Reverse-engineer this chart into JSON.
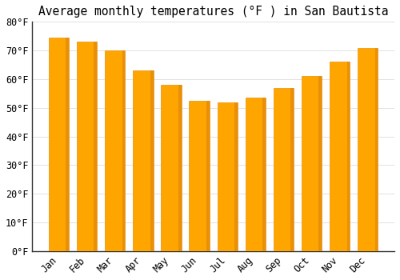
{
  "title": "Average monthly temperatures (°F ) in San Bautista",
  "months": [
    "Jan",
    "Feb",
    "Mar",
    "Apr",
    "May",
    "Jun",
    "Jul",
    "Aug",
    "Sep",
    "Oct",
    "Nov",
    "Dec"
  ],
  "values": [
    74.5,
    73.0,
    70.0,
    63.0,
    58.0,
    52.5,
    52.0,
    53.5,
    57.0,
    61.0,
    66.0,
    71.0
  ],
  "bar_color_left": "#FFA500",
  "bar_color_right": "#E8900A",
  "background_color": "#FFFFFF",
  "grid_color": "#DDDDDD",
  "ylim": [
    0,
    80
  ],
  "yticks": [
    0,
    10,
    20,
    30,
    40,
    50,
    60,
    70,
    80
  ],
  "title_fontsize": 10.5,
  "tick_fontsize": 8.5
}
